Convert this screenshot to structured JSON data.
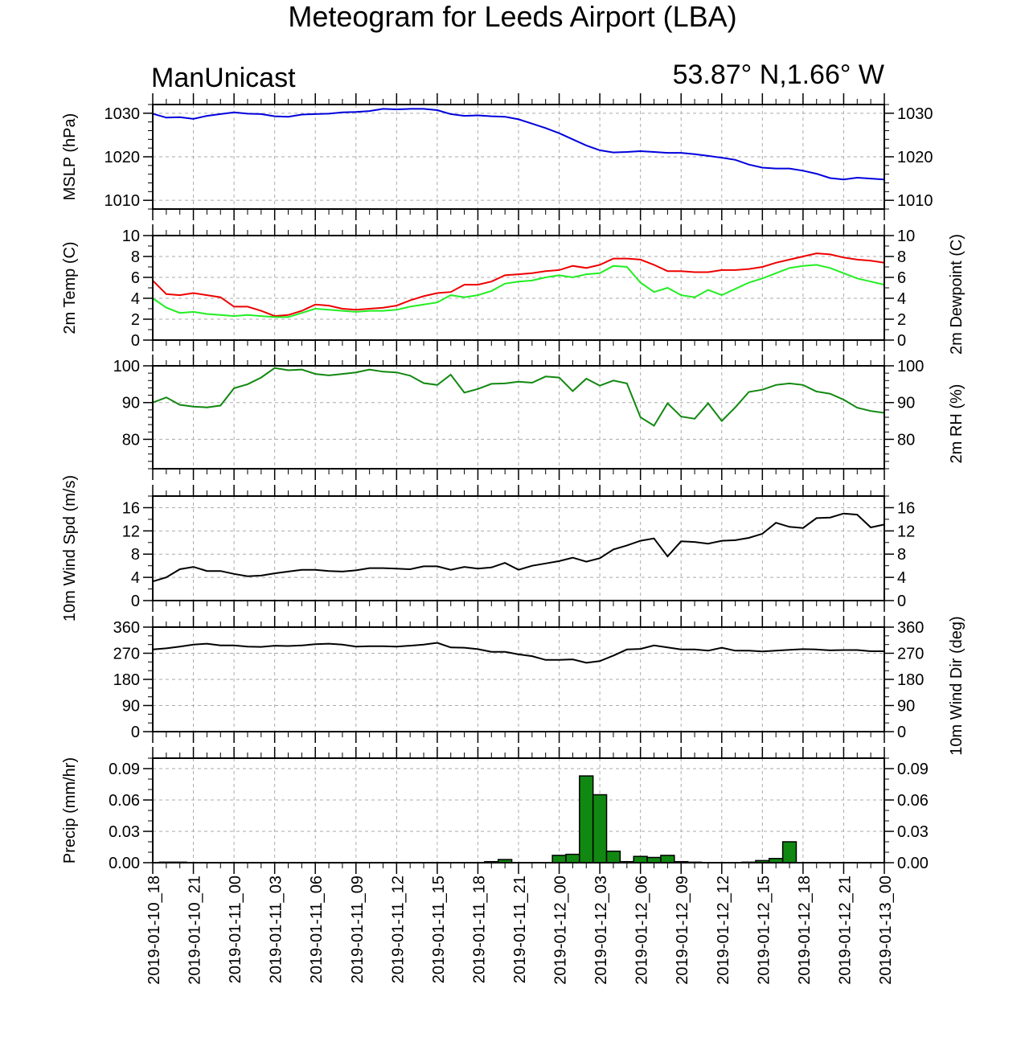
{
  "title": "Meteogram for Leeds Airport (LBA)",
  "header": {
    "left": "ManUnicast",
    "right": "53.87° N,1.66° W"
  },
  "colors": {
    "mslp": "#0000dd",
    "temp": "#ee0000",
    "dewpoint": "#22ee22",
    "rh": "#118811",
    "wind": "#000000",
    "precip_fill": "#118811",
    "grid": "#aaaaaa"
  },
  "chart_data": {
    "type": "line",
    "time_labels": [
      "2019-01-10_18",
      "2019-01-10_21",
      "2019-01-11_00",
      "2019-01-11_03",
      "2019-01-11_06",
      "2019-01-11_09",
      "2019-01-11_12",
      "2019-01-11_15",
      "2019-01-11_18",
      "2019-01-11_21",
      "2019-01-12_00",
      "2019-01-12_03",
      "2019-01-12_06",
      "2019-01-12_09",
      "2019-01-12_12",
      "2019-01-12_15",
      "2019-01-12_18",
      "2019-01-12_21",
      "2019-01-13_00"
    ],
    "x_hours_start": 0,
    "x_hours_end": 54,
    "panels": [
      {
        "id": "mslp",
        "ylabel_left": "MSLP (hPa)",
        "ylabel_right": "",
        "ylim": [
          1008,
          1032
        ],
        "yticks": [
          1010,
          1020,
          1030
        ],
        "tick_labels": [
          "1010",
          "1020",
          "1030"
        ],
        "minor_step": 2,
        "series": [
          {
            "color_key": "mslp",
            "values": [
              1029.9,
              1029.0,
              1029.1,
              1028.7,
              1029.4,
              1029.8,
              1030.2,
              1029.9,
              1029.8,
              1029.3,
              1029.2,
              1029.7,
              1029.8,
              1029.9,
              1030.2,
              1030.3,
              1030.5,
              1031.0,
              1030.9,
              1031.0,
              1031.0,
              1030.7,
              1029.8,
              1029.4,
              1029.5,
              1029.3,
              1029.2,
              1028.6,
              1027.6,
              1026.6,
              1025.4,
              1024.0,
              1022.6,
              1021.5,
              1021.0,
              1021.1,
              1021.3,
              1021.1,
              1020.9,
              1020.9,
              1020.6,
              1020.2,
              1019.8,
              1019.3,
              1018.2,
              1017.5,
              1017.3,
              1017.3,
              1016.8,
              1016.1,
              1015.1,
              1014.8,
              1015.2,
              1015.0,
              1014.8
            ]
          }
        ]
      },
      {
        "id": "temp",
        "ylabel_left": "2m Temp (C)",
        "ylabel_right": "2m Dewpoint (C)",
        "ylim": [
          0,
          10
        ],
        "yticks": [
          0,
          2,
          4,
          6,
          8,
          10
        ],
        "tick_labels": [
          "0",
          "2",
          "4",
          "6",
          "8",
          "10"
        ],
        "minor_step": 1,
        "series": [
          {
            "color_key": "temp",
            "values": [
              5.7,
              4.4,
              4.3,
              4.5,
              4.3,
              4.1,
              3.2,
              3.2,
              2.8,
              2.3,
              2.4,
              2.8,
              3.4,
              3.3,
              3.0,
              2.9,
              3.0,
              3.1,
              3.3,
              3.8,
              4.2,
              4.5,
              4.6,
              5.3,
              5.3,
              5.6,
              6.2,
              6.3,
              6.4,
              6.6,
              6.7,
              7.1,
              6.9,
              7.2,
              7.8,
              7.8,
              7.7,
              7.2,
              6.6,
              6.6,
              6.5,
              6.5,
              6.7,
              6.7,
              6.8,
              7.0,
              7.4,
              7.7,
              8.0,
              8.3,
              8.2,
              7.9,
              7.7,
              7.6,
              7.4
            ]
          },
          {
            "color_key": "dewpoint",
            "values": [
              4.0,
              3.1,
              2.6,
              2.7,
              2.5,
              2.4,
              2.3,
              2.4,
              2.3,
              2.2,
              2.2,
              2.6,
              3.0,
              2.9,
              2.8,
              2.7,
              2.8,
              2.8,
              2.9,
              3.2,
              3.4,
              3.6,
              4.3,
              4.1,
              4.3,
              4.7,
              5.4,
              5.6,
              5.7,
              6.0,
              6.2,
              6.0,
              6.3,
              6.4,
              7.1,
              7.0,
              5.5,
              4.6,
              5.0,
              4.3,
              4.1,
              4.8,
              4.3,
              4.9,
              5.5,
              5.9,
              6.4,
              6.9,
              7.1,
              7.2,
              6.9,
              6.4,
              5.9,
              5.6,
              5.3
            ]
          }
        ]
      },
      {
        "id": "rh",
        "ylabel_left": "",
        "ylabel_right": "2m RH (%)",
        "ylim": [
          72,
          100
        ],
        "yticks": [
          80,
          90,
          100
        ],
        "tick_labels": [
          "80",
          "90",
          "100"
        ],
        "minor_step": 2,
        "series": [
          {
            "color_key": "rh",
            "values": [
              90.0,
              91.4,
              89.4,
              88.9,
              88.7,
              89.2,
              93.9,
              95.0,
              96.8,
              99.4,
              98.8,
              99.0,
              97.8,
              97.4,
              97.8,
              98.2,
              99.0,
              98.4,
              98.2,
              97.3,
              95.3,
              94.8,
              97.6,
              92.7,
              93.7,
              95.1,
              95.2,
              95.7,
              95.4,
              97.1,
              96.8,
              93.1,
              96.5,
              94.6,
              96.0,
              95.2,
              86.0,
              83.7,
              89.8,
              86.2,
              85.6,
              89.8,
              85.0,
              88.7,
              92.9,
              93.5,
              94.8,
              95.2,
              94.8,
              93.0,
              92.4,
              90.8,
              88.6,
              87.7,
              87.2
            ]
          }
        ]
      },
      {
        "id": "wind",
        "ylabel_left": "10m Wind Spd (m/s)",
        "ylabel_right": "",
        "ylim": [
          0,
          18
        ],
        "yticks": [
          0,
          4,
          8,
          12,
          16
        ],
        "tick_labels": [
          "0",
          "4",
          "8",
          "12",
          "16"
        ],
        "minor_step": 2,
        "series": [
          {
            "color_key": "wind",
            "values": [
              3.3,
              4.0,
              5.4,
              5.8,
              5.1,
              5.1,
              4.6,
              4.2,
              4.3,
              4.7,
              5.0,
              5.3,
              5.3,
              5.1,
              5.0,
              5.2,
              5.6,
              5.6,
              5.5,
              5.4,
              5.9,
              5.9,
              5.3,
              5.8,
              5.5,
              5.7,
              6.5,
              5.3,
              6.0,
              6.4,
              6.8,
              7.4,
              6.7,
              7.3,
              8.8,
              9.5,
              10.3,
              10.7,
              7.6,
              10.2,
              10.1,
              9.8,
              10.3,
              10.4,
              10.8,
              11.5,
              13.4,
              12.7,
              12.5,
              14.2,
              14.3,
              15.0,
              14.8,
              12.6,
              13.1
            ]
          }
        ]
      },
      {
        "id": "winddir",
        "ylabel_left": "",
        "ylabel_right": "10m Wind Dir (deg)",
        "ylim": [
          0,
          360
        ],
        "yticks": [
          0,
          90,
          180,
          270,
          360
        ],
        "tick_labels": [
          "0",
          "90",
          "180",
          "270",
          "360"
        ],
        "minor_step": 30,
        "series": [
          {
            "color_key": "wind",
            "values": [
              283,
              287,
              293,
              300,
              303,
              297,
              297,
              293,
              292,
              296,
              295,
              297,
              301,
              303,
              300,
              293,
              294,
              294,
              293,
              296,
              300,
              306,
              290,
              289,
              284,
              275,
              275,
              266,
              260,
              247,
              247,
              249,
              237,
              243,
              262,
              283,
              285,
              297,
              290,
              283,
              283,
              279,
              289,
              279,
              279,
              276,
              279,
              282,
              284,
              283,
              280,
              281,
              281,
              277,
              277
            ]
          }
        ]
      },
      {
        "id": "precip",
        "type": "bar",
        "ylabel_left": "Precip (mm/hr)",
        "ylabel_right": "",
        "ylim": [
          0,
          0.1
        ],
        "yticks": [
          0.0,
          0.03,
          0.06,
          0.09
        ],
        "tick_labels": [
          "0.00",
          "0.03",
          "0.06",
          "0.09"
        ],
        "minor_step": 0.01,
        "bar_start_hour": 1,
        "bar_values": [
          0.0005,
          0.0005,
          0,
          0,
          0,
          0,
          0,
          0,
          0,
          0,
          0,
          0,
          0,
          0,
          0,
          0,
          0,
          0,
          0,
          0,
          0,
          0,
          0,
          0,
          0.001,
          0.003,
          0,
          0,
          0,
          0.007,
          0.008,
          0.083,
          0.065,
          0.011,
          0.001,
          0.006,
          0.005,
          0.007,
          0.001,
          0.0005,
          0,
          0,
          0,
          0.0005,
          0.002,
          0.004,
          0.02,
          0,
          0,
          0,
          0,
          0,
          0,
          0
        ]
      }
    ]
  }
}
